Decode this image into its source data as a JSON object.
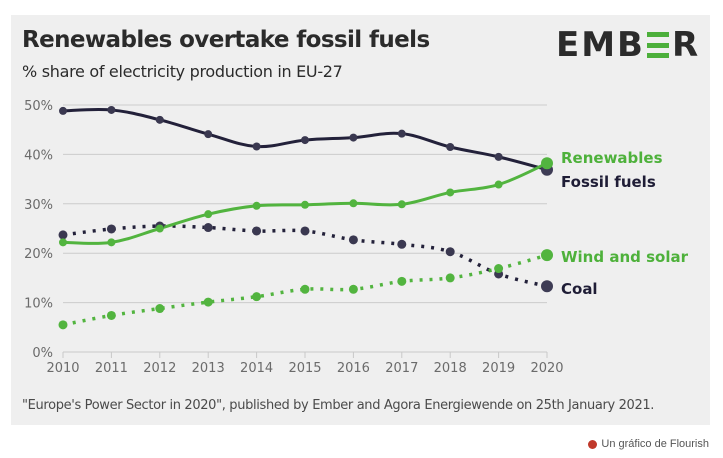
{
  "header": {
    "title": "Renewables overtake fossil fuels",
    "subtitle": "% share of electricity production in EU-27",
    "logo_left": "EMB",
    "logo_right": "R"
  },
  "footer": {
    "source": "\"Europe's Power Sector in 2020\", published by Ember and Agora Energiewende on 25th January 2021.",
    "credit": "Un gráfico de Flourish"
  },
  "colors": {
    "dark": "#23213a",
    "green": "#52b43f",
    "grid": "#cccccc",
    "panel": "#efefef"
  },
  "chart_data": {
    "type": "line",
    "title": "Renewables overtake fossil fuels",
    "subtitle": "% share of electricity production in EU-27",
    "xlabel": "",
    "ylabel": "",
    "x": [
      2010,
      2011,
      2012,
      2013,
      2014,
      2015,
      2016,
      2017,
      2018,
      2019,
      2020
    ],
    "x_tick_labels": [
      "2010",
      "2011",
      "2012",
      "2013",
      "2014",
      "2015",
      "2016",
      "2017",
      "2018",
      "2019",
      "2020"
    ],
    "ylim": [
      0,
      50
    ],
    "y_ticks": [
      0,
      10,
      20,
      30,
      40,
      50
    ],
    "y_tick_labels": [
      "0%",
      "10%",
      "20%",
      "30%",
      "40%",
      "50%"
    ],
    "grid": true,
    "legend": "direct labels at right end of lines",
    "series": [
      {
        "name": "Fossil fuels",
        "color": "#23213a",
        "style": "solid",
        "values": [
          48.8,
          49.0,
          47.0,
          44.1,
          41.6,
          42.9,
          43.4,
          44.2,
          41.5,
          39.5,
          36.9
        ]
      },
      {
        "name": "Renewables",
        "color": "#52b43f",
        "style": "solid",
        "values": [
          22.2,
          22.2,
          25.0,
          27.9,
          29.6,
          29.8,
          30.1,
          29.9,
          32.3,
          33.9,
          38.2
        ]
      },
      {
        "name": "Coal",
        "color": "#23213a",
        "style": "dotted",
        "values": [
          23.7,
          24.9,
          25.5,
          25.2,
          24.5,
          24.5,
          22.7,
          21.8,
          20.3,
          15.8,
          13.3
        ]
      },
      {
        "name": "Wind and solar",
        "color": "#52b43f",
        "style": "dotted",
        "values": [
          5.5,
          7.4,
          8.8,
          10.1,
          11.2,
          12.7,
          12.7,
          14.3,
          15.0,
          16.9,
          19.6
        ]
      }
    ]
  }
}
